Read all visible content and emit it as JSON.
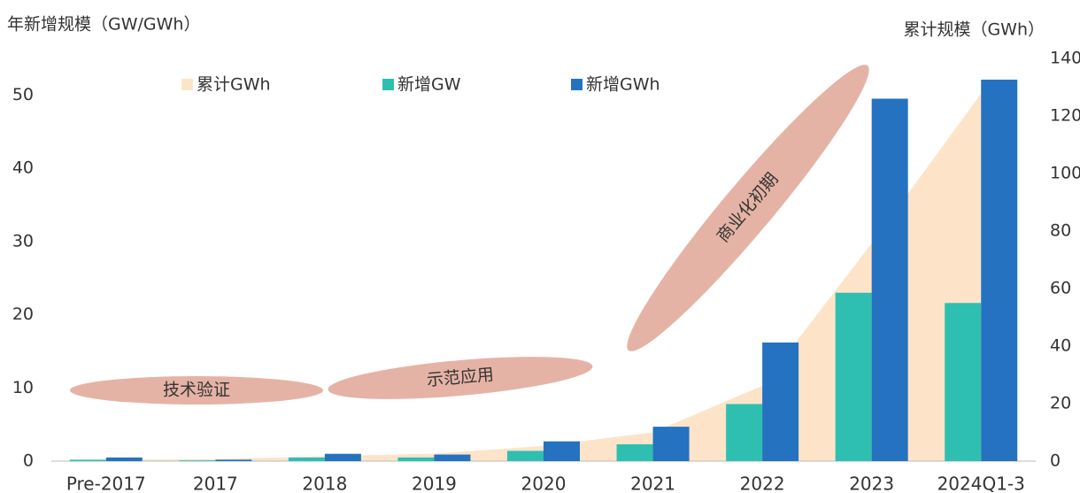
{
  "chart_data": {
    "type": "bar",
    "ylabel": "年新增规模（GW/GWh）",
    "y2label": "累计规模（GWh）",
    "categories": [
      "Pre-2017",
      "2017",
      "2018",
      "2019",
      "2020",
      "2021",
      "2022",
      "2023",
      "2024Q1-3"
    ],
    "series": [
      {
        "name": "累计GWh",
        "type": "area",
        "axis": "y2",
        "color": "#fde4c8",
        "values": [
          0.5,
          0.7,
          1.7,
          2.6,
          5.3,
          10,
          26.2,
          75.7,
          127.8
        ]
      },
      {
        "name": "新增GW",
        "type": "bar",
        "color": "#2fbfb0",
        "values": [
          0.2,
          0.1,
          0.5,
          0.5,
          1.4,
          2.3,
          7.8,
          23,
          21.6
        ]
      },
      {
        "name": "新增GWh",
        "type": "bar",
        "color": "#2472c0",
        "values": [
          0.5,
          0.2,
          1.0,
          0.9,
          2.7,
          4.7,
          16.2,
          49.5,
          52.1
        ]
      }
    ],
    "ylim": [
      0,
      55
    ],
    "yticks": [
      0,
      10,
      20,
      30,
      40,
      50
    ],
    "y2lim": [
      0,
      140
    ],
    "y2ticks": [
      0,
      20,
      40,
      60,
      80,
      100,
      120,
      140
    ],
    "annotations": [
      {
        "text": "技术验证"
      },
      {
        "text": "示范应用"
      },
      {
        "text": "商业化初期"
      }
    ]
  }
}
